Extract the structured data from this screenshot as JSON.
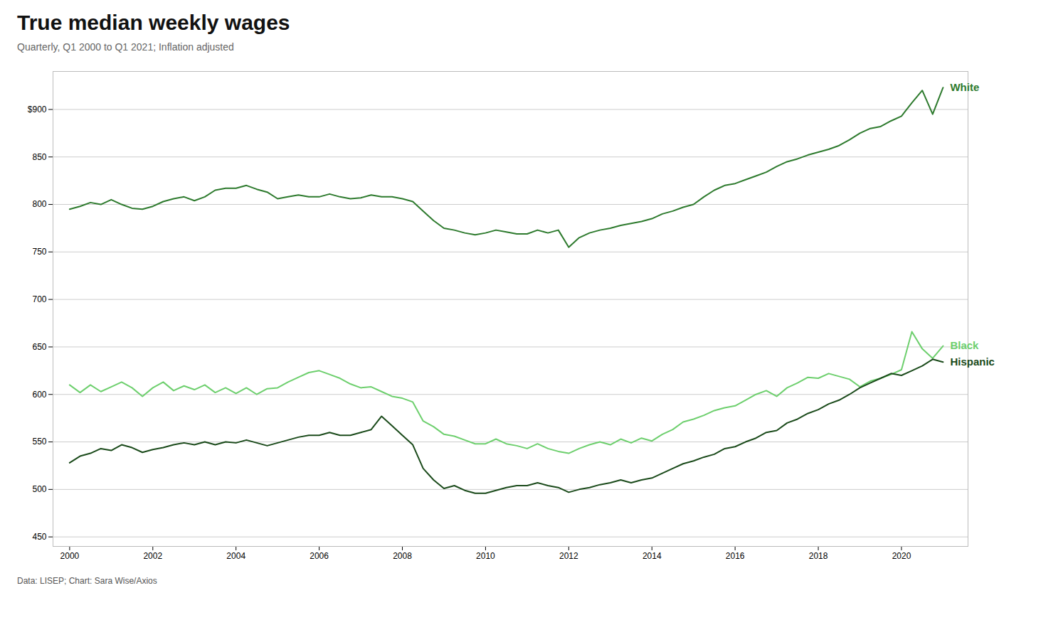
{
  "chart_data": {
    "type": "line",
    "title": "True median weekly wages",
    "subtitle": "Quarterly, Q1 2000 to Q1 2021; Inflation adjusted",
    "caption": "Data: LISEP; Chart: Sara Wise/Axios",
    "xlim": [
      1999.6,
      2021.6
    ],
    "xticks": [
      2000,
      2002,
      2004,
      2006,
      2008,
      2010,
      2012,
      2014,
      2016,
      2018,
      2020
    ],
    "ylim": [
      440,
      940
    ],
    "yticks": [
      450,
      500,
      550,
      600,
      650,
      700,
      750,
      800,
      850,
      {
        "value": 900,
        "label": "$900"
      }
    ],
    "grid": "y",
    "x": [
      2000.0,
      2000.25,
      2000.5,
      2000.75,
      2001.0,
      2001.25,
      2001.5,
      2001.75,
      2002.0,
      2002.25,
      2002.5,
      2002.75,
      2003.0,
      2003.25,
      2003.5,
      2003.75,
      2004.0,
      2004.25,
      2004.5,
      2004.75,
      2005.0,
      2005.25,
      2005.5,
      2005.75,
      2006.0,
      2006.25,
      2006.5,
      2006.75,
      2007.0,
      2007.25,
      2007.5,
      2007.75,
      2008.0,
      2008.25,
      2008.5,
      2008.75,
      2009.0,
      2009.25,
      2009.5,
      2009.75,
      2010.0,
      2010.25,
      2010.5,
      2010.75,
      2011.0,
      2011.25,
      2011.5,
      2011.75,
      2012.0,
      2012.25,
      2012.5,
      2012.75,
      2013.0,
      2013.25,
      2013.5,
      2013.75,
      2014.0,
      2014.25,
      2014.5,
      2014.75,
      2015.0,
      2015.25,
      2015.5,
      2015.75,
      2016.0,
      2016.25,
      2016.5,
      2016.75,
      2017.0,
      2017.25,
      2017.5,
      2017.75,
      2018.0,
      2018.25,
      2018.5,
      2018.75,
      2019.0,
      2019.25,
      2019.5,
      2019.75,
      2020.0,
      2020.25,
      2020.5,
      2020.75,
      2021.0
    ],
    "series": [
      {
        "name": "White",
        "color": "#2d7a2d",
        "values": [
          795,
          798,
          802,
          800,
          805,
          800,
          796,
          795,
          798,
          803,
          806,
          808,
          804,
          808,
          815,
          817,
          817,
          820,
          816,
          813,
          806,
          808,
          810,
          808,
          808,
          811,
          808,
          806,
          807,
          810,
          808,
          808,
          806,
          803,
          793,
          783,
          775,
          773,
          770,
          768,
          770,
          773,
          771,
          769,
          769,
          773,
          770,
          773,
          755,
          765,
          770,
          773,
          775,
          778,
          780,
          782,
          785,
          790,
          793,
          797,
          800,
          808,
          815,
          820,
          822,
          826,
          830,
          834,
          840,
          845,
          848,
          852,
          855,
          858,
          862,
          868,
          875,
          880,
          882,
          888,
          893,
          907,
          920,
          895,
          923
        ]
      },
      {
        "name": "Black",
        "color": "#6dcf6d",
        "values": [
          610,
          602,
          610,
          603,
          608,
          613,
          607,
          598,
          607,
          613,
          604,
          609,
          605,
          610,
          602,
          607,
          601,
          607,
          600,
          606,
          607,
          613,
          618,
          623,
          625,
          621,
          617,
          611,
          607,
          608,
          603,
          598,
          596,
          592,
          572,
          566,
          558,
          556,
          552,
          548,
          548,
          553,
          548,
          546,
          543,
          548,
          543,
          540,
          538,
          543,
          547,
          550,
          547,
          553,
          549,
          554,
          551,
          558,
          563,
          571,
          574,
          578,
          583,
          586,
          588,
          594,
          600,
          604,
          598,
          607,
          612,
          618,
          617,
          622,
          619,
          616,
          608,
          614,
          617,
          621,
          626,
          666,
          648,
          638,
          651
        ]
      },
      {
        "name": "Hispanic",
        "color": "#1a4a1a",
        "values": [
          528,
          535,
          538,
          543,
          541,
          547,
          544,
          539,
          542,
          544,
          547,
          549,
          547,
          550,
          547,
          550,
          549,
          552,
          549,
          546,
          549,
          552,
          555,
          557,
          557,
          560,
          557,
          557,
          560,
          563,
          577,
          567,
          557,
          547,
          522,
          510,
          501,
          504,
          499,
          496,
          496,
          499,
          502,
          504,
          504,
          507,
          504,
          502,
          497,
          500,
          502,
          505,
          507,
          510,
          507,
          510,
          512,
          517,
          522,
          527,
          530,
          534,
          537,
          543,
          545,
          550,
          554,
          560,
          562,
          570,
          574,
          580,
          584,
          590,
          594,
          600,
          607,
          612,
          617,
          622,
          620,
          625,
          630,
          637,
          634
        ]
      }
    ]
  }
}
